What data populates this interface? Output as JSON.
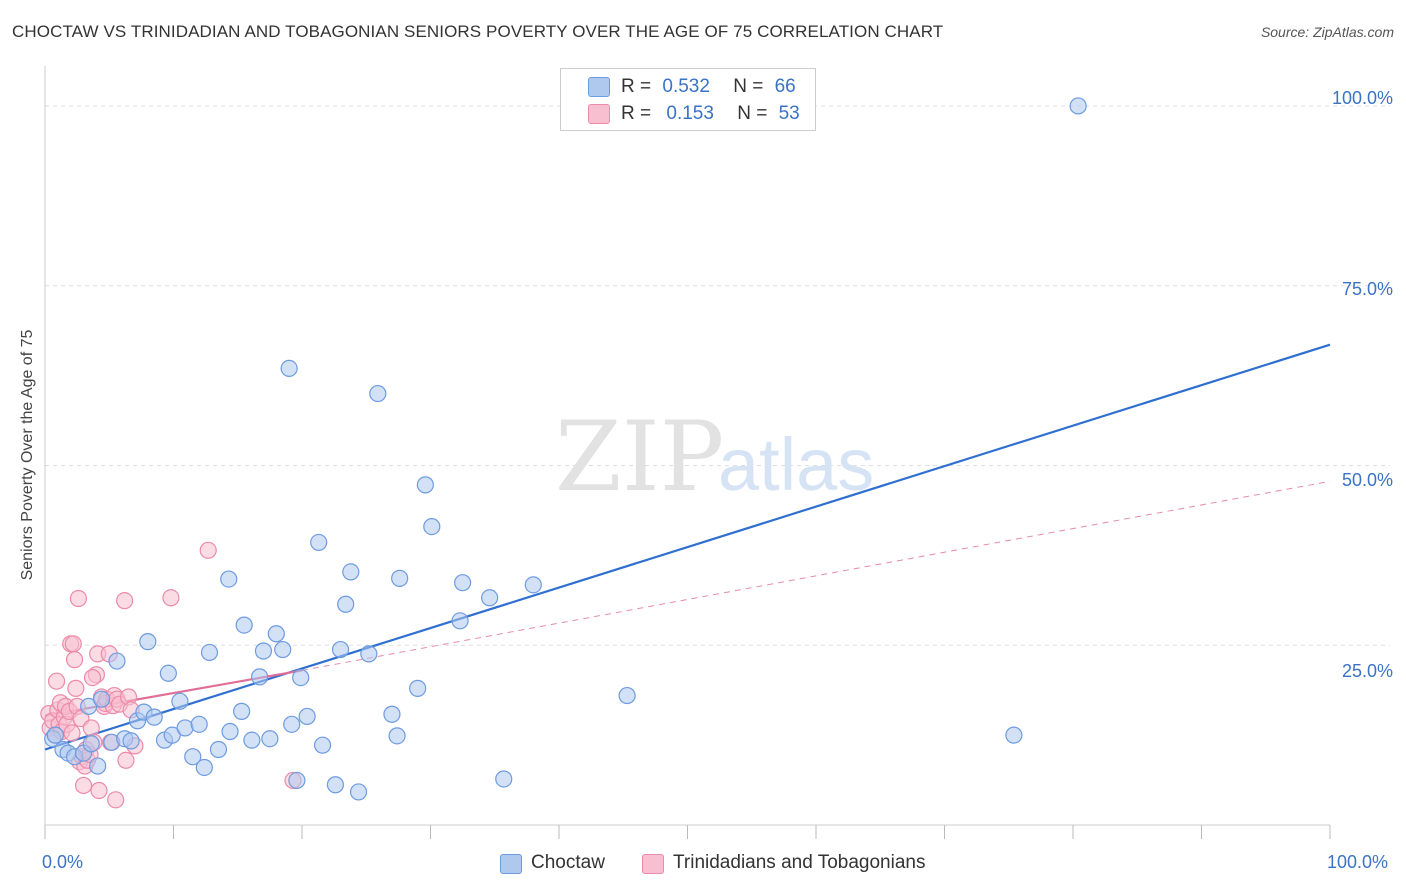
{
  "title": "CHOCTAW VS TRINIDADIAN AND TOBAGONIAN SENIORS POVERTY OVER THE AGE OF 75 CORRELATION CHART",
  "source": "Source: ZipAtlas.com",
  "watermark": {
    "zip": "ZIP",
    "atlas": "atlas"
  },
  "legend": {
    "r_label": "R =",
    "n_label": "N =",
    "series": [
      {
        "r": "0.532",
        "n": "66"
      },
      {
        "r": "0.153",
        "n": "53"
      }
    ]
  },
  "colors": {
    "choctaw_fill": "#aec8ee",
    "choctaw_stroke": "#6d9be0",
    "choctaw_line": "#2f6fcf",
    "trini_fill": "#f7bfd0",
    "trini_stroke": "#ec8aaa",
    "trini_line": "#e06e97",
    "axis_text": "#3a73c5",
    "grid": "#dddddd"
  },
  "chart_data": {
    "type": "scatter",
    "title": "CHOCTAW VS TRINIDADIAN AND TOBAGONIAN SENIORS POVERTY OVER THE AGE OF 75 CORRELATION CHART",
    "xlabel": "",
    "ylabel": "Seniors Poverty Over the Age of 75",
    "xlim": [
      0,
      100
    ],
    "ylim": [
      0,
      105
    ],
    "x_tick_labels": [
      "0.0%",
      "100.0%"
    ],
    "y_tick_labels": [
      "100.0%",
      "75.0%",
      "50.0%",
      "25.0%"
    ],
    "y_ticks": [
      100,
      75,
      50,
      25
    ],
    "grid": true,
    "legend_position": "top-center",
    "series": [
      {
        "name": "Choctaw",
        "r": 0.532,
        "n": 66,
        "points": [
          [
            0.6,
            12
          ],
          [
            0.8,
            12.5
          ],
          [
            1.4,
            10.5
          ],
          [
            1.8,
            10
          ],
          [
            2.3,
            9.5
          ],
          [
            3.0,
            10
          ],
          [
            3.4,
            16.5
          ],
          [
            3.6,
            11.3
          ],
          [
            4.1,
            8.2
          ],
          [
            4.4,
            17.5
          ],
          [
            5.2,
            11.5
          ],
          [
            5.6,
            22.8
          ],
          [
            6.2,
            12
          ],
          [
            6.7,
            11.7
          ],
          [
            7.2,
            14.5
          ],
          [
            7.7,
            15.7
          ],
          [
            8.0,
            25.5
          ],
          [
            8.5,
            15
          ],
          [
            9.3,
            11.8
          ],
          [
            9.6,
            21.1
          ],
          [
            9.9,
            12.5
          ],
          [
            10.5,
            17.2
          ],
          [
            10.9,
            13.5
          ],
          [
            11.5,
            9.5
          ],
          [
            12.0,
            14
          ],
          [
            12.4,
            8
          ],
          [
            12.8,
            24
          ],
          [
            13.5,
            10.5
          ],
          [
            14.3,
            34.2
          ],
          [
            14.4,
            13
          ],
          [
            15.3,
            15.8
          ],
          [
            15.5,
            27.8
          ],
          [
            16.1,
            11.8
          ],
          [
            16.7,
            20.6
          ],
          [
            17.0,
            24.2
          ],
          [
            17.5,
            12
          ],
          [
            18.0,
            26.6
          ],
          [
            18.5,
            24.4
          ],
          [
            19.2,
            14
          ],
          [
            19.6,
            6.2
          ],
          [
            19.9,
            20.5
          ],
          [
            20.4,
            15.1
          ],
          [
            19.0,
            63.5
          ],
          [
            21.3,
            39.3
          ],
          [
            21.6,
            11.1
          ],
          [
            22.6,
            5.6
          ],
          [
            23.0,
            24.4
          ],
          [
            23.4,
            30.7
          ],
          [
            23.8,
            35.2
          ],
          [
            24.4,
            4.6
          ],
          [
            25.2,
            23.8
          ],
          [
            25.9,
            60.0
          ],
          [
            27.0,
            15.4
          ],
          [
            27.4,
            12.4
          ],
          [
            27.6,
            34.3
          ],
          [
            29.0,
            19
          ],
          [
            29.6,
            47.3
          ],
          [
            30.1,
            41.5
          ],
          [
            32.3,
            28.4
          ],
          [
            32.5,
            33.7
          ],
          [
            34.6,
            31.6
          ],
          [
            35.7,
            6.4
          ],
          [
            38.0,
            33.4
          ],
          [
            45.3,
            18
          ],
          [
            75.4,
            12.5
          ],
          [
            80.4,
            100
          ]
        ]
      },
      {
        "name": "Trinidadians and Tobagonians",
        "r": 0.153,
        "n": 53,
        "points": [
          [
            0.3,
            15.5
          ],
          [
            0.4,
            13.5
          ],
          [
            0.6,
            14.5
          ],
          [
            0.8,
            12.5
          ],
          [
            0.9,
            20
          ],
          [
            1.0,
            16
          ],
          [
            1.1,
            14
          ],
          [
            1.2,
            17
          ],
          [
            1.3,
            13
          ],
          [
            1.5,
            15
          ],
          [
            1.6,
            16.5
          ],
          [
            1.7,
            14
          ],
          [
            1.9,
            15.8
          ],
          [
            2.0,
            25.2
          ],
          [
            2.1,
            12.8
          ],
          [
            2.2,
            25.2
          ],
          [
            2.3,
            23
          ],
          [
            2.4,
            19
          ],
          [
            2.5,
            16.5
          ],
          [
            2.6,
            31.5
          ],
          [
            2.7,
            8.8
          ],
          [
            2.8,
            14.8
          ],
          [
            2.9,
            9.5
          ],
          [
            3.0,
            5.5
          ],
          [
            3.1,
            8.2
          ],
          [
            3.2,
            10.5
          ],
          [
            3.3,
            9
          ],
          [
            3.5,
            9.8
          ],
          [
            3.6,
            13.5
          ],
          [
            3.8,
            11.5
          ],
          [
            4.0,
            20.9
          ],
          [
            4.1,
            23.8
          ],
          [
            4.2,
            4.8
          ],
          [
            4.4,
            17.8
          ],
          [
            4.6,
            16.5
          ],
          [
            4.7,
            16.9
          ],
          [
            4.8,
            17.5
          ],
          [
            5.0,
            23.8
          ],
          [
            5.1,
            11.5
          ],
          [
            5.3,
            16.6
          ],
          [
            5.4,
            18
          ],
          [
            5.6,
            17.5
          ],
          [
            5.8,
            16.8
          ],
          [
            5.5,
            3.5
          ],
          [
            6.2,
            31.2
          ],
          [
            6.3,
            9
          ],
          [
            6.5,
            17.8
          ],
          [
            6.7,
            16
          ],
          [
            9.8,
            31.6
          ],
          [
            12.7,
            38.2
          ],
          [
            19.3,
            6.2
          ],
          [
            7.0,
            11
          ],
          [
            3.7,
            20.5
          ]
        ]
      }
    ],
    "trend_lines": [
      {
        "series": "Choctaw",
        "x": [
          0,
          100
        ],
        "y": [
          10.5,
          66.8
        ],
        "style": "solid"
      },
      {
        "series": "Trinidadians and Tobagonians",
        "x": [
          0,
          20
        ],
        "y": [
          15.2,
          21.5
        ],
        "style": "solid"
      },
      {
        "series": "Trinidadians and Tobagonians",
        "x": [
          20,
          100
        ],
        "y": [
          21.5,
          47.8
        ],
        "style": "dashed"
      }
    ]
  }
}
